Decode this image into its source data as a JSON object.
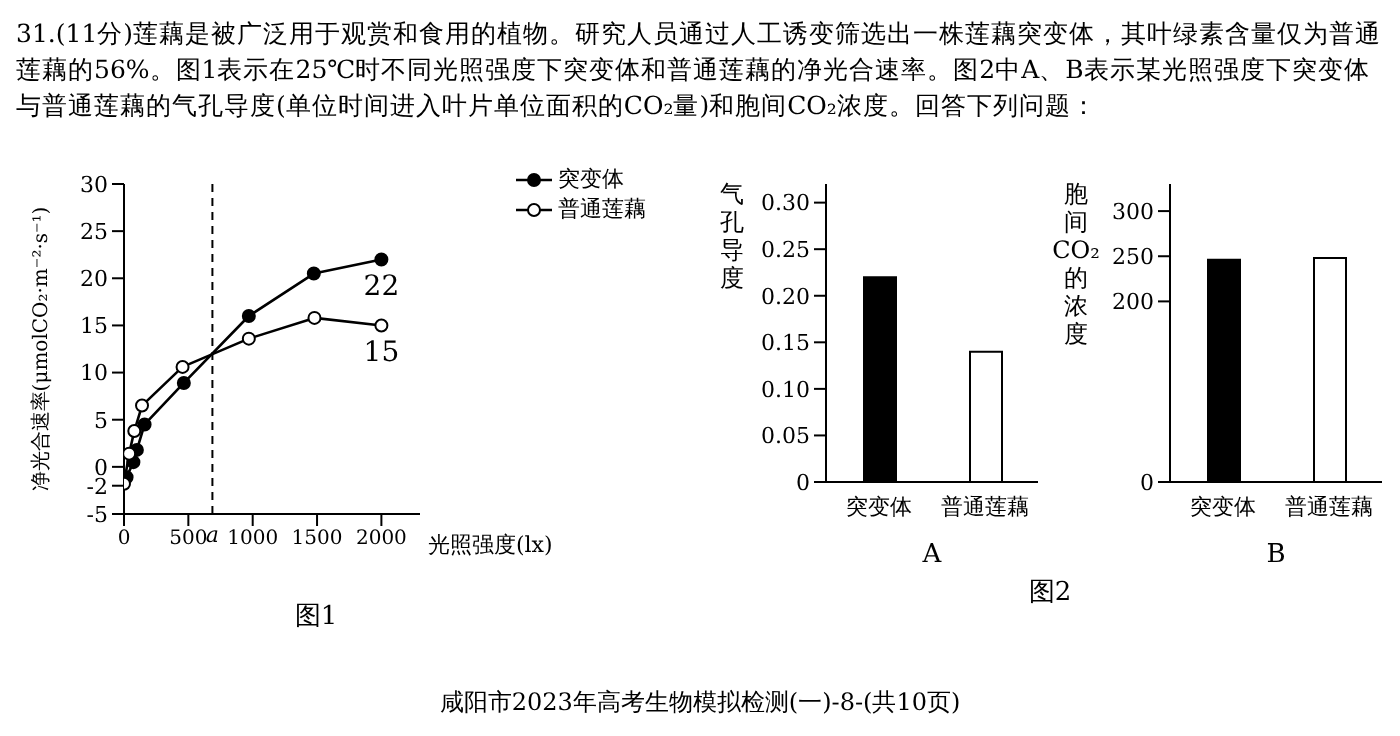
{
  "chart_data": [
    {
      "type": "line",
      "xlabel": "光照强度(lx)",
      "ylabel": "净光合速率(μmolCO₂·m⁻²·s⁻¹)",
      "xlim": [
        0,
        2300
      ],
      "xticks": [
        0,
        500,
        1000,
        1500,
        2000
      ],
      "ylim": [
        -5,
        30
      ],
      "yticks": [
        -5,
        -2,
        0,
        5,
        10,
        15,
        20,
        25,
        30
      ],
      "grid": false,
      "legend": "top right",
      "marker": "circle",
      "ref_lines": [
        {
          "axis": "x",
          "value": 687,
          "label": "a",
          "line_style": "dashed"
        }
      ],
      "annotations": [
        "31.(11分)莲藕是被广泛用于观赏和食用的植物。研究人员通过人工诱变筛选出一株莲藕突变体，其叶绿素含量仅为普通莲藕的56%。图1表示在25℃时不同光照强度下突变体和普通莲藕的净光合速率。图2中A、B表示某光照强度下突变体与普通莲藕的气孔导度(单位时间进入叶片单位面积的CO₂量)和胞间CO₂浓度。回答下列问题：",
        "图1",
        "咸阳市2023年高考生物模拟检测(一)-8-(共10页)"
      ],
      "series": [
        {
          "name": "突变体",
          "color": "#000000",
          "x": [
            20,
            73,
            100,
            160,
            465,
            970,
            1475,
            2000
          ],
          "values": [
            -1.1,
            0.5,
            1.8,
            4.5,
            8.9,
            16,
            20.5,
            22
          ],
          "value_labels": [
            null,
            null,
            null,
            null,
            null,
            null,
            null,
            "22"
          ]
        },
        {
          "name": "普通莲藕",
          "color": "#000000",
          "x": [
            0,
            40,
            80,
            140,
            455,
            970,
            1480,
            2000
          ],
          "values": [
            -1.8,
            1.4,
            3.8,
            6.5,
            10.6,
            13.6,
            15.8,
            15
          ],
          "value_labels": [
            null,
            null,
            null,
            null,
            null,
            null,
            null,
            "15"
          ]
        }
      ]
    },
    {
      "type": "bar",
      "categories": [
        "突变体",
        "普通莲藕"
      ],
      "values": [
        0.22,
        0.14
      ],
      "colors": [
        "#000000",
        "#ffffff"
      ],
      "ylabel": "气孔导度",
      "xlabel": "A",
      "ylim": [
        0,
        0.32
      ],
      "yticks": [
        0,
        0.05,
        {
          "value": 0.1,
          "label": "0.10"
        },
        0.15,
        {
          "value": 0.2,
          "label": "0.20"
        },
        0.25,
        {
          "value": 0.3,
          "label": "0.30"
        }
      ],
      "grid": false,
      "legend": false
    },
    {
      "type": "bar",
      "categories": [
        "突变体",
        "普通莲藕"
      ],
      "values": [
        246,
        248
      ],
      "colors": [
        "#000000",
        "#ffffff"
      ],
      "ylabel": "胞间CO₂的浓度",
      "xlabel": "B",
      "ylim": [
        0,
        330
      ],
      "yticks": [
        0,
        200,
        250,
        300
      ],
      "grid": false,
      "legend": false,
      "annotations": [
        "图2"
      ]
    }
  ]
}
